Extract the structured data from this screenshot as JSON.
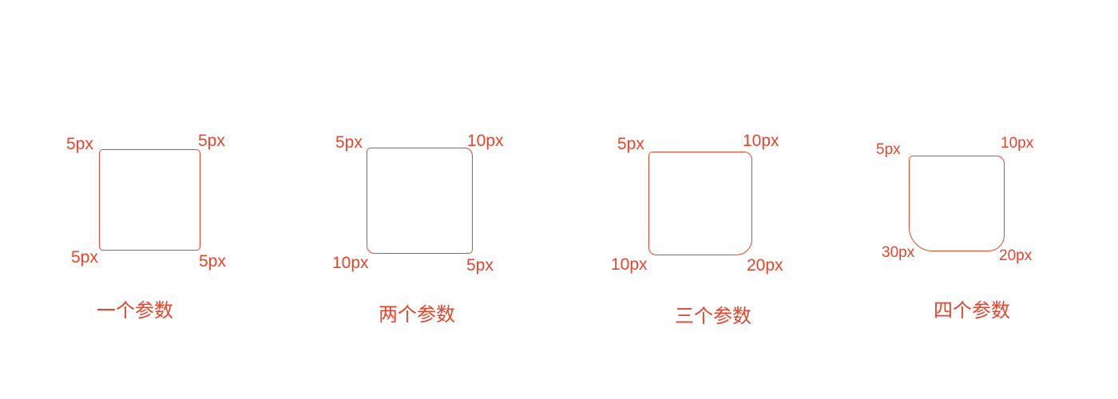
{
  "groups": [
    {
      "caption": "一个参数",
      "corners": {
        "top_left": "5px",
        "top_right": "5px",
        "bottom_right": "5px",
        "bottom_left": "5px"
      }
    },
    {
      "caption": "两个参数",
      "corners": {
        "top_left": "5px",
        "top_right": "10px",
        "bottom_right": "5px",
        "bottom_left": "10px"
      }
    },
    {
      "caption": "三个参数",
      "corners": {
        "top_left": "5px",
        "top_right": "10px",
        "bottom_right": "20px",
        "bottom_left": "10px"
      }
    },
    {
      "caption": "四个参数",
      "corners": {
        "top_left": "5px",
        "top_right": "10px",
        "bottom_right": "20px",
        "bottom_left": "30px"
      }
    }
  ],
  "colors": {
    "accent": "#e8452c"
  }
}
